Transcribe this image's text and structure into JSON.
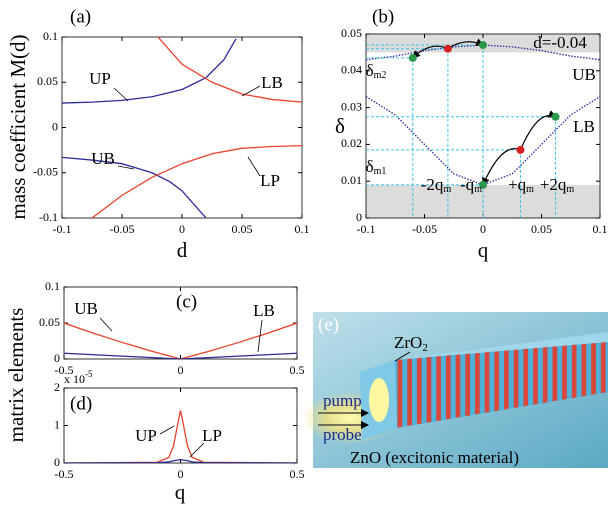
{
  "chart_data": [
    {
      "type": "line",
      "panel_label": "(a)",
      "xlabel": "d",
      "ylabel": "mass coefficient M(d)",
      "xlim": [
        -0.1,
        0.1
      ],
      "ylim": [
        -0.1,
        0.1
      ],
      "xticks": [
        -0.1,
        -0.05,
        0,
        0.05,
        0.1
      ],
      "yticks": [
        -0.1,
        -0.05,
        0,
        0.05,
        0.1
      ],
      "series": [
        {
          "name": "UP",
          "color": "#2b2b9a",
          "x": [
            -0.1,
            -0.075,
            -0.05,
            -0.025,
            0,
            0.02,
            0.035,
            0.045
          ],
          "values": [
            0.027,
            0.028,
            0.03,
            0.034,
            0.042,
            0.055,
            0.075,
            0.098
          ]
        },
        {
          "name": "UB",
          "color": "#2b2b9a",
          "x": [
            -0.1,
            -0.075,
            -0.05,
            -0.025,
            -0.01,
            0,
            0.01,
            0.02
          ],
          "values": [
            -0.033,
            -0.036,
            -0.04,
            -0.05,
            -0.06,
            -0.07,
            -0.085,
            -0.1
          ]
        },
        {
          "name": "LB",
          "color": "#e8412c",
          "x": [
            -0.02,
            -0.01,
            0,
            0.025,
            0.05,
            0.075,
            0.1
          ],
          "values": [
            0.1,
            0.085,
            0.07,
            0.05,
            0.037,
            0.031,
            0.028
          ]
        },
        {
          "name": "LP",
          "color": "#e8412c",
          "x": [
            -0.075,
            -0.05,
            -0.025,
            0,
            0.025,
            0.05,
            0.075,
            0.1
          ],
          "values": [
            -0.1,
            -0.075,
            -0.055,
            -0.04,
            -0.029,
            -0.023,
            -0.021,
            -0.02
          ]
        }
      ]
    },
    {
      "type": "line",
      "panel_label": "(b)",
      "xlabel": "q",
      "ylabel": "δ",
      "xlim": [
        -0.1,
        0.1
      ],
      "ylim": [
        0,
        0.05
      ],
      "xticks": [
        -0.1,
        -0.05,
        0,
        0.05,
        0.1
      ],
      "yticks": [
        0,
        0.01,
        0.02,
        0.03,
        0.04,
        0.05
      ],
      "bands": [
        [
          0.045,
          0.05
        ],
        [
          0,
          0.009
        ]
      ],
      "band_color": "#dcdcdc",
      "series": [
        {
          "name": "UB",
          "color": "#2b2b9a",
          "dotted": true,
          "x": [
            -0.1,
            -0.075,
            -0.05,
            -0.025,
            0,
            0.025,
            0.05,
            0.075,
            0.1
          ],
          "values": [
            0.043,
            0.044,
            0.0455,
            0.0465,
            0.047,
            0.0465,
            0.0455,
            0.044,
            0.043
          ]
        },
        {
          "name": "LB",
          "color": "#2b2b9a",
          "dotted": true,
          "x": [
            -0.1,
            -0.075,
            -0.05,
            -0.025,
            0,
            0.025,
            0.05,
            0.075,
            0.1
          ],
          "values": [
            0.033,
            0.028,
            0.02,
            0.012,
            0.009,
            0.012,
            0.02,
            0.028,
            0.033
          ]
        }
      ],
      "markers": {
        "x": [
          -0.06,
          -0.03,
          0,
          0,
          0.032,
          0.062
        ],
        "values": [
          0.0435,
          0.046,
          0.047,
          0.009,
          0.0185,
          0.0275
        ],
        "colors": [
          "#2a9a4a",
          "#d62020",
          "#2a9a4a",
          "#2a9a4a",
          "#d62020",
          "#2a9a4a"
        ]
      },
      "annotations": [
        {
          "text": "d=-0.04"
        },
        {
          "text": "δ",
          "sub": "m2"
        },
        {
          "text": "δ",
          "sub": "m1"
        },
        {
          "text": "-2q",
          "sub": "m"
        },
        {
          "text": "-q",
          "sub": "m"
        },
        {
          "text": "+q",
          "sub": "m"
        },
        {
          "text": "+2q",
          "sub": "m"
        }
      ]
    },
    {
      "type": "line",
      "panel_label": "(c)",
      "ylabel": "matrix elements",
      "xlim": [
        -0.5,
        0.5
      ],
      "ylim": [
        0,
        0.1
      ],
      "xticks": [
        -0.5,
        0,
        0.5
      ],
      "yticks": [
        0,
        0.05,
        0.1
      ],
      "series": [
        {
          "name": "UB",
          "color": "#e8412c",
          "x": [
            -0.5,
            -0.375,
            -0.25,
            -0.125,
            0,
            0.125,
            0.25,
            0.375,
            0.5
          ],
          "values": [
            0.05,
            0.036,
            0.023,
            0.011,
            0,
            0.011,
            0.023,
            0.036,
            0.05
          ]
        },
        {
          "name": "LB",
          "color": "#2b2b9a",
          "x": [
            -0.5,
            -0.25,
            0,
            0.25,
            0.5
          ],
          "values": [
            0.008,
            0.004,
            0,
            0.004,
            0.008
          ]
        }
      ]
    },
    {
      "type": "line",
      "panel_label": "(d)",
      "xlabel": "q",
      "y_multiplier": "x 10",
      "y_multiplier_exp": "-5",
      "xlim": [
        -0.5,
        0.5
      ],
      "ylim": [
        0,
        2
      ],
      "xticks": [
        -0.5,
        0,
        0.5
      ],
      "yticks": [
        0,
        1,
        2
      ],
      "series": [
        {
          "name": "UP",
          "color": "#e8412c",
          "x": [
            -0.5,
            -0.1,
            -0.05,
            -0.03,
            -0.01,
            0,
            0.01,
            0.03,
            0.05,
            0.1,
            0.5
          ],
          "values": [
            0,
            0.02,
            0.15,
            0.45,
            1.1,
            1.4,
            1.1,
            0.45,
            0.15,
            0.02,
            0
          ]
        },
        {
          "name": "LP",
          "color": "#2b2b9a",
          "x": [
            -0.5,
            -0.1,
            -0.05,
            -0.03,
            -0.01,
            0,
            0.01,
            0.03,
            0.05,
            0.1,
            0.5
          ],
          "values": [
            0,
            0.01,
            0.03,
            0.06,
            0.08,
            0.09,
            0.08,
            0.06,
            0.03,
            0.01,
            0
          ]
        }
      ]
    }
  ],
  "illustration": {
    "panel_label": "(e)",
    "layer": {
      "text": "ZrO",
      "sub": "2"
    },
    "pump": "pump",
    "probe": "probe",
    "material": "ZnO (excitonic material)"
  }
}
